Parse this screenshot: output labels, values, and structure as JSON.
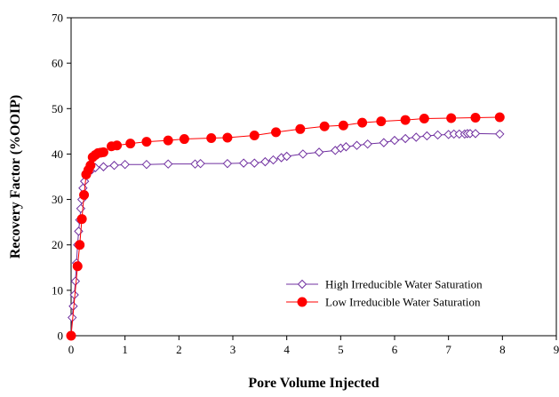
{
  "chart_data": {
    "type": "line",
    "xlabel": "Pore Volume Injected",
    "ylabel": "Recovery Factor (%OOIP)",
    "xlim": [
      0,
      9
    ],
    "ylim": [
      0,
      70
    ],
    "x_ticks": [
      0,
      1,
      2,
      3,
      4,
      5,
      6,
      7,
      8,
      9
    ],
    "y_ticks": [
      0,
      10,
      20,
      30,
      40,
      50,
      60,
      70
    ],
    "grid": false,
    "legend_position": "bottom-right",
    "series": [
      {
        "name": "High Irreducible Water Saturation",
        "color": "#7030a0",
        "marker": "open-diamond",
        "x": [
          0,
          0.02,
          0.04,
          0.06,
          0.08,
          0.1,
          0.12,
          0.14,
          0.16,
          0.18,
          0.2,
          0.22,
          0.25,
          0.28,
          0.32,
          0.38,
          0.45,
          0.6,
          0.8,
          1.0,
          1.4,
          1.8,
          2.3,
          2.4,
          2.9,
          3.2,
          3.4,
          3.6,
          3.75,
          3.9,
          4.0,
          4.3,
          4.6,
          4.9,
          5.0,
          5.1,
          5.3,
          5.5,
          5.8,
          6.0,
          6.2,
          6.4,
          6.6,
          6.8,
          7.0,
          7.1,
          7.2,
          7.3,
          7.35,
          7.4,
          7.5,
          7.95
        ],
        "y": [
          0,
          4,
          6.5,
          9,
          12,
          16,
          20,
          23,
          25.5,
          28,
          30,
          32.5,
          34,
          35.5,
          36,
          36.5,
          37,
          37.2,
          37.5,
          37.7,
          37.7,
          37.8,
          37.8,
          37.9,
          37.9,
          38,
          38,
          38.3,
          38.7,
          39.2,
          39.5,
          40,
          40.4,
          40.8,
          41.3,
          41.6,
          41.9,
          42.2,
          42.5,
          43,
          43.4,
          43.7,
          44,
          44.2,
          44.3,
          44.4,
          44.4,
          44.4,
          44.5,
          44.5,
          44.5,
          44.4
        ]
      },
      {
        "name": "Low Irreducible Water Saturation",
        "color": "#ff0000",
        "marker": "filled-circle",
        "x": [
          0,
          0.12,
          0.16,
          0.2,
          0.24,
          0.28,
          0.32,
          0.36,
          0.4,
          0.45,
          0.5,
          0.55,
          0.6,
          0.75,
          0.85,
          1.1,
          1.4,
          1.8,
          2.1,
          2.6,
          2.9,
          3.4,
          3.8,
          4.25,
          4.7,
          5.05,
          5.4,
          5.75,
          6.2,
          6.55,
          7.05,
          7.5,
          7.95
        ],
        "y": [
          0,
          15.3,
          20,
          25.7,
          31,
          35.5,
          36.5,
          37.5,
          39.3,
          39.8,
          40.2,
          40.3,
          40.4,
          41.7,
          41.9,
          42.3,
          42.7,
          43,
          43.3,
          43.5,
          43.6,
          44.1,
          44.8,
          45.5,
          46.1,
          46.3,
          46.9,
          47.2,
          47.5,
          47.8,
          47.9,
          48,
          48.1
        ]
      }
    ]
  }
}
